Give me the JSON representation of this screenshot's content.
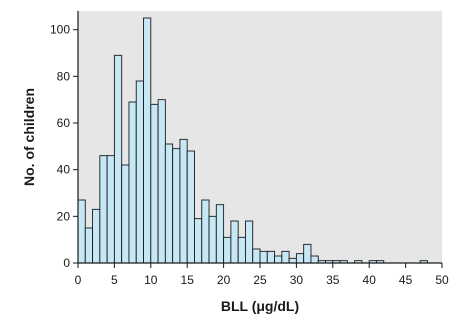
{
  "chart_data": {
    "type": "bar",
    "title": "",
    "xlabel": "BLL (μg/dL)",
    "ylabel": "No. of children",
    "xlim": [
      0,
      50
    ],
    "ylim": [
      0,
      108
    ],
    "xticks": [
      "0",
      "5",
      "10",
      "15",
      "20",
      "25",
      "30",
      "35",
      "40",
      "45",
      "50"
    ],
    "yticks": [
      "0",
      "20",
      "40",
      "60",
      "80",
      "100"
    ],
    "grid": false,
    "bin_width": 1,
    "bin_starts": [
      0,
      1,
      2,
      3,
      4,
      5,
      6,
      7,
      8,
      9,
      10,
      11,
      12,
      13,
      14,
      15,
      16,
      17,
      18,
      19,
      20,
      21,
      22,
      23,
      24,
      25,
      26,
      27,
      28,
      29,
      30,
      31,
      32,
      33,
      34,
      35,
      36,
      37,
      38,
      39,
      40,
      41,
      42,
      43,
      44,
      45,
      46,
      47
    ],
    "values": [
      27,
      15,
      23,
      46,
      46,
      89,
      42,
      69,
      78,
      105,
      68,
      70,
      51,
      49,
      53,
      48,
      19,
      27,
      20,
      25,
      11,
      18,
      11,
      18,
      6,
      5,
      5,
      3,
      5,
      2,
      4,
      8,
      3,
      1,
      1,
      1,
      1,
      0,
      1,
      0,
      1,
      1,
      0,
      0,
      0,
      0,
      0,
      1
    ],
    "colors": {
      "bar_fill": "#c6e8f5",
      "bar_stroke": "#1a1a1a",
      "plot_background": "#e6e6e6",
      "axis": "#1a1a1a"
    }
  }
}
